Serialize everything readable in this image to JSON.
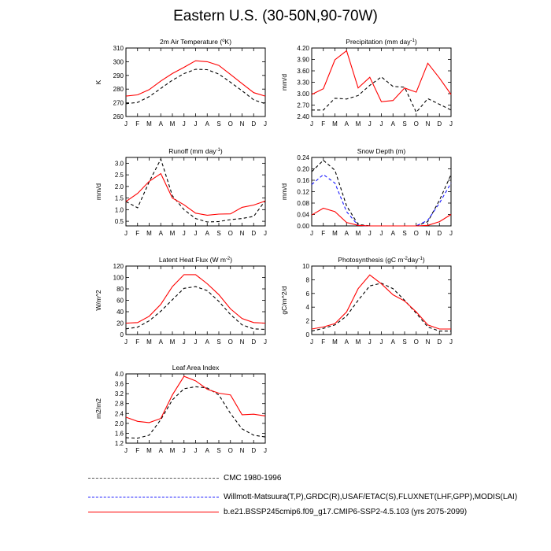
{
  "figure": {
    "title": "Eastern U.S. (30-50N,90-70W)",
    "months": [
      "J",
      "F",
      "M",
      "A",
      "M",
      "J",
      "J",
      "A",
      "S",
      "O",
      "N",
      "D",
      "J"
    ]
  },
  "legend": [
    {
      "label": "CMC 1980-1996",
      "color": "#555555",
      "style": "dash"
    },
    {
      "label": "Willmott-Matsuura(T,P),GRDC(R),USAF/ETAC(S),FLUXNET(LHF,GPP),MODIS(LAI)",
      "color": "#1a1aff",
      "style": "dash"
    },
    {
      "label": "b.e21.BSSP245cmip6.f09_g17.CMIP6-SSP2-4.5.103 (yrs 2075-2099)",
      "color": "#ff0000",
      "style": "solid"
    }
  ],
  "colors": {
    "model": "#ff0000",
    "obs_black": "#000000",
    "obs_blue": "#1a1aff"
  },
  "chart_data": [
    {
      "type": "line",
      "title": "2m Air Temperature (°K)",
      "title_parts": [
        "2m Air Temperature (",
        "o",
        "K)"
      ],
      "ylabel": "K",
      "ylim": [
        260,
        310
      ],
      "yticks": [
        260,
        270,
        280,
        290,
        300,
        310
      ],
      "ytick_labels": [
        "260",
        "270",
        "280",
        "290",
        "300",
        "310"
      ],
      "x": [
        "J",
        "F",
        "M",
        "A",
        "M",
        "J",
        "J",
        "A",
        "S",
        "O",
        "N",
        "D",
        "J"
      ],
      "series": [
        {
          "color": "#000000",
          "style": "dash",
          "values": [
            269.3,
            270.3,
            274.5,
            280.5,
            286.5,
            291.3,
            294.5,
            294.2,
            291.0,
            285.0,
            278.8,
            272.2,
            269.3
          ]
        },
        {
          "color": "#ff0000",
          "style": "solid",
          "values": [
            274.9,
            275.8,
            279.6,
            285.9,
            291.4,
            295.9,
            300.7,
            300.0,
            297.3,
            290.7,
            284.0,
            277.4,
            274.9
          ]
        }
      ]
    },
    {
      "type": "line",
      "title": "Precipitation (mm day-1)",
      "title_parts": [
        "Precipitation (mm day",
        "-1",
        ")"
      ],
      "ylabel": "mm/d",
      "ylim": [
        2.4,
        4.2
      ],
      "yticks": [
        2.4,
        2.7,
        3.0,
        3.3,
        3.6,
        3.9,
        4.2
      ],
      "ytick_labels": [
        "2.40",
        "2.70",
        "3.00",
        "3.30",
        "3.60",
        "3.90",
        "4.20"
      ],
      "x": [
        "J",
        "F",
        "M",
        "A",
        "M",
        "J",
        "J",
        "A",
        "S",
        "O",
        "N",
        "D",
        "J"
      ],
      "series": [
        {
          "color": "#000000",
          "style": "dash",
          "values": [
            2.57,
            2.57,
            2.88,
            2.86,
            2.95,
            3.22,
            3.44,
            3.19,
            3.17,
            2.51,
            2.87,
            2.72,
            2.57
          ]
        },
        {
          "color": "#ff0000",
          "style": "solid",
          "values": [
            2.98,
            3.13,
            3.89,
            4.13,
            3.15,
            3.43,
            2.79,
            2.82,
            3.15,
            3.04,
            3.8,
            3.41,
            2.98
          ]
        }
      ]
    },
    {
      "type": "line",
      "title": "Runoff (mm day-1)",
      "title_parts": [
        "Runoff (mm day",
        "-1",
        ")"
      ],
      "ylabel": "mm/d",
      "ylim": [
        0.3,
        3.25
      ],
      "yticks": [
        0.5,
        1.0,
        1.5,
        2.0,
        2.5,
        3.0
      ],
      "ytick_labels": [
        "0.5",
        "1.0",
        "1.5",
        "2.0",
        "2.5",
        "3.0"
      ],
      "x": [
        "J",
        "F",
        "M",
        "A",
        "M",
        "J",
        "J",
        "A",
        "S",
        "O",
        "N",
        "D",
        "J"
      ],
      "series": [
        {
          "color": "#000000",
          "style": "dash",
          "values": [
            1.35,
            1.08,
            2.2,
            3.18,
            1.6,
            1.0,
            0.62,
            0.47,
            0.49,
            0.57,
            0.62,
            0.71,
            1.39
          ]
        },
        {
          "color": "#ff0000",
          "style": "solid",
          "values": [
            1.35,
            1.7,
            2.22,
            2.55,
            1.5,
            1.21,
            0.85,
            0.76,
            0.81,
            0.82,
            1.1,
            1.2,
            1.37
          ]
        }
      ]
    },
    {
      "type": "line",
      "title": "Snow Depth (m)",
      "title_parts": [
        "Snow Depth (m)",
        "",
        ""
      ],
      "ylabel": "mm/d",
      "ylim": [
        0,
        0.24
      ],
      "yticks": [
        0,
        0.04,
        0.08,
        0.12,
        0.16,
        0.2,
        0.24
      ],
      "ytick_labels": [
        "0.00",
        "0.04",
        "0.08",
        "0.12",
        "0.16",
        "0.20",
        "0.24"
      ],
      "x": [
        "J",
        "F",
        "M",
        "A",
        "M",
        "J",
        "J",
        "A",
        "S",
        "O",
        "N",
        "D",
        "J"
      ],
      "series": [
        {
          "color": "#000000",
          "style": "dash",
          "values": [
            0.19,
            0.23,
            0.195,
            0.07,
            0.005,
            0,
            0,
            0,
            0,
            0,
            0.015,
            0.09,
            0.18
          ]
        },
        {
          "color": "#1a1aff",
          "style": "dash",
          "values": [
            0.145,
            0.18,
            0.15,
            0.05,
            0.002,
            0,
            0,
            0,
            0,
            0,
            0.02,
            0.08,
            0.15
          ]
        },
        {
          "color": "#ff0000",
          "style": "solid",
          "values": [
            0.038,
            0.062,
            0.05,
            0.012,
            0.002,
            0,
            0,
            0,
            0,
            0,
            0.002,
            0.015,
            0.04
          ]
        }
      ]
    },
    {
      "type": "line",
      "title": "Latent Heat Flux (W m-2)",
      "title_parts": [
        "Latent Heat Flux (W m",
        "-2",
        ")"
      ],
      "ylabel": "W/m^2",
      "ylim": [
        0,
        120
      ],
      "yticks": [
        0,
        20,
        40,
        60,
        80,
        100,
        120
      ],
      "ytick_labels": [
        "0",
        "20",
        "40",
        "60",
        "80",
        "100",
        "120"
      ],
      "x": [
        "J",
        "F",
        "M",
        "A",
        "M",
        "J",
        "J",
        "A",
        "S",
        "O",
        "N",
        "D",
        "J"
      ],
      "series": [
        {
          "color": "#000000",
          "style": "dash",
          "values": [
            10,
            13,
            24,
            41,
            61,
            81,
            84,
            77,
            58,
            35,
            17,
            10,
            9
          ]
        },
        {
          "color": "#ff0000",
          "style": "solid",
          "values": [
            20,
            21,
            32,
            53,
            84,
            105,
            105,
            89,
            70,
            45,
            28,
            21,
            20
          ]
        }
      ]
    },
    {
      "type": "line",
      "title": "Photosynthesis (gC m-2day-1)",
      "title_parts": [
        "Photosynthesis (gC m",
        "-2",
        "day",
        "-1",
        ")"
      ],
      "ylabel": "gC/m^2/d",
      "ylim": [
        0,
        10
      ],
      "yticks": [
        0,
        2,
        4,
        6,
        8,
        10
      ],
      "ytick_labels": [
        "0",
        "2",
        "4",
        "6",
        "8",
        "10"
      ],
      "x": [
        "J",
        "F",
        "M",
        "A",
        "M",
        "J",
        "J",
        "A",
        "S",
        "O",
        "N",
        "D",
        "J"
      ],
      "series": [
        {
          "color": "#000000",
          "style": "dash",
          "values": [
            0.5,
            0.9,
            1.4,
            2.7,
            5.0,
            7.1,
            7.5,
            6.7,
            5.0,
            3.1,
            1.1,
            0.5,
            0.5
          ]
        },
        {
          "color": "#ff0000",
          "style": "solid",
          "values": [
            0.8,
            1.1,
            1.6,
            3.3,
            6.7,
            8.7,
            7.4,
            5.8,
            4.9,
            3.3,
            1.4,
            0.8,
            0.8
          ]
        }
      ]
    },
    {
      "type": "line",
      "title": "Leaf Area Index",
      "title_parts": [
        "Leaf Area Index",
        "",
        ""
      ],
      "ylabel": "m2/m2",
      "ylim": [
        1.2,
        4.0
      ],
      "yticks": [
        1.2,
        1.6,
        2.0,
        2.4,
        2.8,
        3.2,
        3.6,
        4.0
      ],
      "ytick_labels": [
        "1.2",
        "1.6",
        "2.0",
        "2.4",
        "2.8",
        "3.2",
        "3.6",
        "4.0"
      ],
      "x": [
        "J",
        "F",
        "M",
        "A",
        "M",
        "J",
        "J",
        "A",
        "S",
        "O",
        "N",
        "D",
        "J"
      ],
      "series": [
        {
          "color": "#000000",
          "style": "dash",
          "values": [
            1.42,
            1.4,
            1.52,
            2.15,
            2.95,
            3.4,
            3.48,
            3.43,
            3.15,
            2.4,
            1.78,
            1.52,
            1.45
          ]
        },
        {
          "color": "#ff0000",
          "style": "solid",
          "values": [
            2.25,
            2.08,
            2.03,
            2.2,
            3.15,
            3.9,
            3.72,
            3.38,
            3.22,
            3.15,
            2.35,
            2.37,
            2.3
          ]
        }
      ]
    }
  ]
}
